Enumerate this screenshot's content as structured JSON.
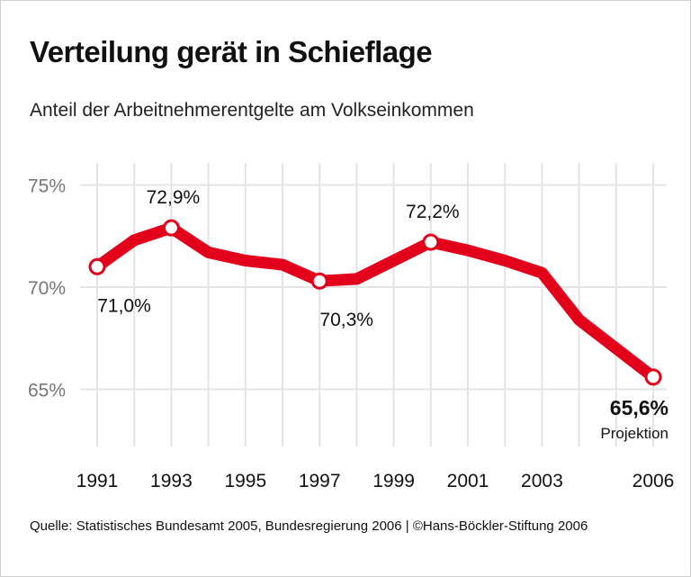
{
  "chart_data": {
    "type": "line",
    "title": "Verteilung gerät in Schieflage",
    "subtitle": "Anteil der Arbeitnehmerentgelte am Volkseinkommen",
    "source": "Quelle: Statistisches Bundesamt 2005, Bundesregierung 2006 | ©Hans-Böckler-Stiftung 2006",
    "x": [
      1991,
      1992,
      1993,
      1994,
      1995,
      1996,
      1997,
      1998,
      1999,
      2000,
      2001,
      2002,
      2003,
      2004,
      2005,
      2006
    ],
    "values": [
      71.0,
      72.3,
      72.9,
      71.7,
      71.3,
      71.1,
      70.3,
      70.4,
      71.3,
      72.2,
      71.8,
      71.3,
      70.7,
      68.4,
      67.0,
      65.6
    ],
    "xlim": [
      1991,
      2006
    ],
    "ylim": [
      62.5,
      76
    ],
    "yticks": [
      {
        "value": 75,
        "label": "75%"
      },
      {
        "value": 70,
        "label": "70%"
      },
      {
        "value": 65,
        "label": "65%"
      }
    ],
    "xticks": [
      {
        "value": 1991,
        "label": "1991"
      },
      {
        "value": 1993,
        "label": "1993"
      },
      {
        "value": 1995,
        "label": "1995"
      },
      {
        "value": 1997,
        "label": "1997"
      },
      {
        "value": 1999,
        "label": "1999"
      },
      {
        "value": 2001,
        "label": "2001"
      },
      {
        "value": 2003,
        "label": "2003"
      },
      {
        "value": 2006,
        "label": "2006"
      }
    ],
    "annotations": [
      {
        "year": 1991,
        "label": "71,0%",
        "position": "below"
      },
      {
        "year": 1993,
        "label": "72,9%",
        "position": "above"
      },
      {
        "year": 1997,
        "label": "70,3%",
        "position": "below"
      },
      {
        "year": 2000,
        "label": "72,2%",
        "position": "above"
      },
      {
        "year": 2006,
        "label": "65,6%",
        "note": "Projektion",
        "position": "below",
        "bold": true
      }
    ],
    "grid": true,
    "line_color": "#e2001a",
    "grid_color": "#e4e4e4"
  }
}
